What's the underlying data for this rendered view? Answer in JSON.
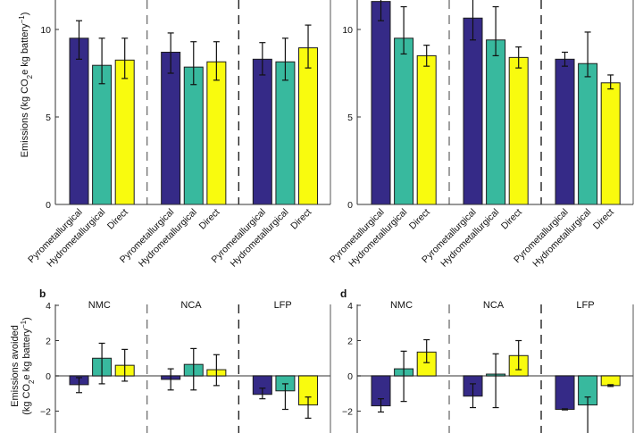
{
  "figure": {
    "colors": {
      "Pyrometallurgical": "#352a87",
      "Hydrometallurgical": "#38b99e",
      "Direct": "#f9fb0e",
      "bar_outline": "#1d1d1d",
      "axis": "#555555",
      "errorbar": "#111111"
    }
  },
  "chart_data": [
    {
      "panel": "a",
      "panel_letter": "",
      "type": "bar",
      "ylabel": "Emissions (kg CO2e kg battery−1)",
      "ylabel_parts": {
        "pre": "Emissions (kg CO",
        "sub": "2",
        "mid": "e kg battery",
        "sup": "−1",
        "post": ")"
      },
      "ylim": [
        0,
        11.7
      ],
      "yticks": [
        0,
        5,
        10
      ],
      "zero_line": false,
      "groups": [
        "NMC",
        "NCA",
        "LFP"
      ],
      "group_labels_visible": false,
      "categories": [
        "Pyrometallurgical",
        "Hydrometallurgical",
        "Direct"
      ],
      "series": [
        {
          "group": "NMC",
          "values": [
            9.5,
            7.95,
            8.25
          ],
          "err_low": [
            8.3,
            6.9,
            7.2
          ],
          "err_high": [
            10.5,
            9.5,
            9.5
          ]
        },
        {
          "group": "NCA",
          "values": [
            8.7,
            7.85,
            8.15
          ],
          "err_low": [
            7.5,
            6.85,
            7.1
          ],
          "err_high": [
            9.8,
            9.3,
            9.3
          ]
        },
        {
          "group": "LFP",
          "values": [
            8.3,
            8.15,
            8.95
          ],
          "err_low": [
            7.4,
            7.1,
            7.8
          ],
          "err_high": [
            9.25,
            9.5,
            10.25
          ]
        }
      ]
    },
    {
      "panel": "c",
      "panel_letter": "",
      "type": "bar",
      "ylabel": "",
      "ylim": [
        0,
        11.7
      ],
      "yticks": [
        0,
        5,
        10
      ],
      "zero_line": false,
      "groups": [
        "NMC",
        "NCA",
        "LFP"
      ],
      "group_labels_visible": false,
      "categories": [
        "Pyrometallurgical",
        "Hydrometallurgical",
        "Direct"
      ],
      "series": [
        {
          "group": "NMC",
          "values": [
            11.6,
            9.5,
            8.5
          ],
          "err_low": [
            10.5,
            8.6,
            7.9
          ],
          "err_high": [
            12.5,
            11.3,
            9.1
          ]
        },
        {
          "group": "NCA",
          "values": [
            10.65,
            9.4,
            8.4
          ],
          "err_low": [
            9.4,
            8.5,
            7.8
          ],
          "err_high": [
            12.5,
            11.3,
            9.0
          ]
        },
        {
          "group": "LFP",
          "values": [
            8.3,
            8.05,
            6.95
          ],
          "err_low": [
            7.9,
            7.3,
            6.6
          ],
          "err_high": [
            8.7,
            9.85,
            7.4
          ]
        }
      ]
    },
    {
      "panel": "b",
      "panel_letter": "b",
      "type": "bar",
      "ylabel": "Emissions avoided (kg CO2e kg battery−1)",
      "ylabel_line1": "Emissions avoided",
      "ylabel_parts": {
        "pre": "(kg CO",
        "sub": "2",
        "mid": "e kg battery",
        "sup": "−1",
        "post": ")"
      },
      "ylim": [
        -3.3,
        4
      ],
      "yticks": [
        -2,
        0,
        2,
        4
      ],
      "zero_line": true,
      "groups": [
        "NMC",
        "NCA",
        "LFP"
      ],
      "group_labels_visible": true,
      "categories": [
        "Pyrometallurgical",
        "Hydrometallurgical",
        "Direct"
      ],
      "series": [
        {
          "group": "NMC",
          "values": [
            -0.5,
            1.0,
            0.6
          ],
          "err_low": [
            -0.95,
            -0.45,
            -0.3
          ],
          "err_high": [
            -0.1,
            1.85,
            1.5
          ]
        },
        {
          "group": "NCA",
          "values": [
            -0.2,
            0.65,
            0.35
          ],
          "err_low": [
            -0.8,
            -0.8,
            -0.55
          ],
          "err_high": [
            0.4,
            1.55,
            1.2
          ]
        },
        {
          "group": "LFP",
          "values": [
            -1.05,
            -0.85,
            -1.65
          ],
          "err_low": [
            -1.3,
            -1.9,
            -2.4
          ],
          "err_high": [
            -0.7,
            -0.45,
            -1.2
          ]
        }
      ]
    },
    {
      "panel": "d",
      "panel_letter": "d",
      "type": "bar",
      "ylabel": "",
      "ylim": [
        -3.3,
        4
      ],
      "yticks": [
        -2,
        0,
        2,
        4
      ],
      "zero_line": true,
      "groups": [
        "NMC",
        "NCA",
        "LFP"
      ],
      "group_labels_visible": true,
      "categories": [
        "Pyrometallurgical",
        "Hydrometallurgical",
        "Direct"
      ],
      "series": [
        {
          "group": "NMC",
          "values": [
            -1.7,
            0.4,
            1.35
          ],
          "err_low": [
            -2.05,
            -1.45,
            0.75
          ],
          "err_high": [
            -1.3,
            1.4,
            2.05
          ]
        },
        {
          "group": "NCA",
          "values": [
            -1.15,
            0.1,
            1.15
          ],
          "err_low": [
            -1.8,
            -1.8,
            0.35
          ],
          "err_high": [
            -0.45,
            1.25,
            2.0
          ]
        },
        {
          "group": "LFP",
          "values": [
            -1.9,
            -1.65,
            -0.55
          ],
          "err_low": [
            -1.93,
            -3.5,
            -0.6
          ],
          "err_high": [
            -1.87,
            -1.2,
            -0.5
          ]
        }
      ]
    }
  ]
}
